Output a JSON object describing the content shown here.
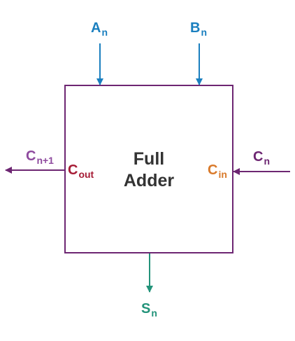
{
  "block": {
    "title_line1": "Full",
    "title_line2": "Adder"
  },
  "inputs": {
    "a": {
      "base": "A",
      "sub": "n",
      "color": "#1a7fbf"
    },
    "b": {
      "base": "B",
      "sub": "n",
      "color": "#1a7fbf"
    },
    "carry_in_signal": {
      "base": "C",
      "sub": "n",
      "color": "#6d2672"
    }
  },
  "ports": {
    "carry_in": {
      "base": "C",
      "sub": "in",
      "color": "#d97a2b"
    },
    "carry_out": {
      "base": "C",
      "sub": "out",
      "color": "#a61b35"
    }
  },
  "outputs": {
    "carry_out_signal": {
      "base": "C",
      "sub": "n+1",
      "color": "#8e4a9e"
    },
    "sum": {
      "base": "S",
      "sub": "n",
      "color": "#23937a"
    }
  },
  "colors": {
    "block_border": "#6d2672",
    "input_arrow": "#1a7fbf",
    "carry_arrow": "#6d2672",
    "sum_arrow": "#23937a"
  }
}
